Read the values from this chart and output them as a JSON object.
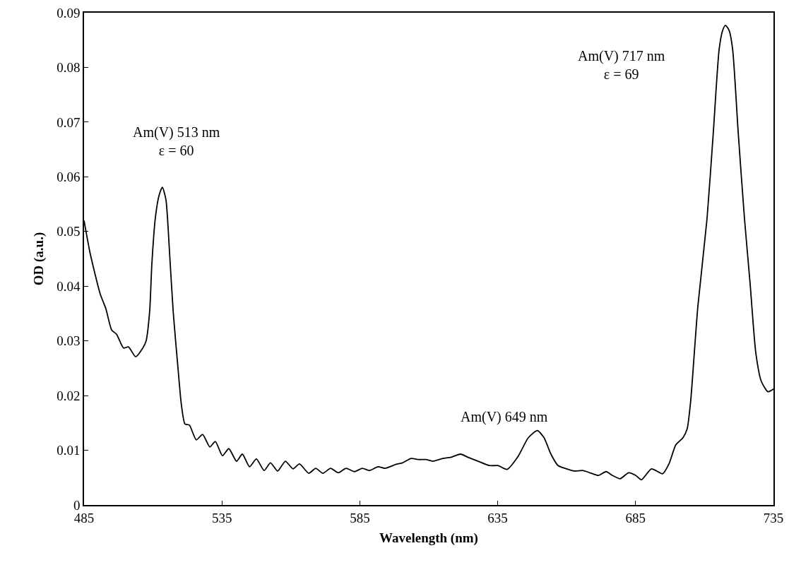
{
  "chart_data": {
    "type": "line",
    "xlabel": "Wavelength (nm)",
    "ylabel": "OD (a.u.)",
    "xlim": [
      485,
      735
    ],
    "xticks": [
      485,
      535,
      585,
      635,
      685,
      735
    ],
    "ylim": [
      0,
      0.09
    ],
    "yticks": [
      0,
      0.01,
      0.02,
      0.03,
      0.04,
      0.05,
      0.06,
      0.07,
      0.08,
      0.09
    ],
    "grid": false,
    "marker": "none",
    "line_style": "solid",
    "series": [
      {
        "color": "#000000",
        "x": [
          485,
          487.3,
          490.9,
          492.9,
          495.0,
          496.8,
          499.3,
          501.1,
          503.7,
          506.3,
          507.5,
          508.8,
          509.6,
          510.9,
          512.2,
          513.4,
          514.7,
          516.0,
          517.3,
          519.1,
          520.3,
          521.6,
          523.2,
          525.7,
          528.0,
          530.6,
          532.6,
          535.2,
          537.5,
          540.3,
          542.4,
          545.0,
          547.5,
          550.3,
          552.6,
          555.2,
          558.0,
          560.8,
          563.1,
          566.5,
          569.0,
          571.6,
          574.4,
          577.2,
          580.0,
          583.1,
          585.9,
          588.5,
          591.6,
          594.1,
          598.0,
          600.5,
          603.6,
          606.4,
          609.0,
          611.5,
          615.1,
          617.9,
          621.5,
          624.3,
          627.9,
          632.0,
          635.1,
          638.4,
          642.3,
          646.1,
          649.4,
          651.8,
          654.3,
          656.9,
          659.4,
          662.8,
          665.8,
          668.4,
          671.5,
          674.3,
          676.6,
          679.4,
          682.5,
          685.1,
          687.1,
          690.7,
          692.7,
          694.8,
          697.1,
          699.6,
          702.2,
          703.7,
          705.0,
          706.3,
          707.6,
          710.9,
          713.2,
          715.3,
          716.6,
          717.6,
          718.9,
          720.2,
          722.2,
          724.5,
          726.5,
          728.6,
          730.6,
          733.0,
          735
        ],
        "values": [
          0.052,
          0.0458,
          0.0385,
          0.0359,
          0.032,
          0.0312,
          0.0287,
          0.0289,
          0.0271,
          0.0287,
          0.03,
          0.0355,
          0.0442,
          0.0527,
          0.0566,
          0.0581,
          0.0558,
          0.0462,
          0.0355,
          0.0248,
          0.0183,
          0.0148,
          0.0146,
          0.0119,
          0.0129,
          0.0106,
          0.0116,
          0.009,
          0.0103,
          0.008,
          0.0093,
          0.007,
          0.0084,
          0.0063,
          0.0077,
          0.0062,
          0.008,
          0.0066,
          0.0075,
          0.0058,
          0.0067,
          0.0058,
          0.0067,
          0.0059,
          0.0067,
          0.0061,
          0.0067,
          0.0063,
          0.007,
          0.0067,
          0.0074,
          0.0077,
          0.0085,
          0.0083,
          0.0083,
          0.008,
          0.0085,
          0.0087,
          0.0093,
          0.0087,
          0.008,
          0.0072,
          0.0072,
          0.0065,
          0.0088,
          0.0123,
          0.0136,
          0.0123,
          0.0093,
          0.0072,
          0.0067,
          0.0062,
          0.0063,
          0.0059,
          0.0054,
          0.0061,
          0.0054,
          0.0048,
          0.0059,
          0.0054,
          0.0046,
          0.0066,
          0.0062,
          0.0057,
          0.0075,
          0.011,
          0.0123,
          0.0139,
          0.0191,
          0.0278,
          0.0364,
          0.0523,
          0.0682,
          0.0833,
          0.0868,
          0.0877,
          0.0868,
          0.0833,
          0.0682,
          0.0523,
          0.0407,
          0.0278,
          0.0226,
          0.0207,
          0.0212
        ]
      }
    ],
    "annotations": [
      "Am(V) 513 nm\nε = 60",
      "Am(V) 649 nm",
      "Am(V) 717 nm\nε = 69"
    ]
  }
}
